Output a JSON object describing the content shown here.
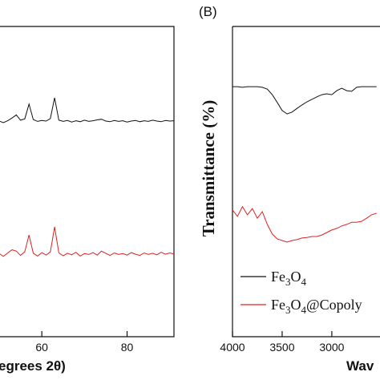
{
  "chart_data": [
    {
      "type": "line",
      "xlabel": "egrees 2θ)",
      "xlim": [
        50,
        91
      ],
      "ylim": [
        0,
        100
      ],
      "xticks": [
        60,
        80
      ],
      "x": [
        50,
        51,
        52,
        53,
        54,
        55,
        56,
        57,
        58,
        59,
        60,
        61,
        62,
        63,
        64,
        65,
        66,
        67,
        68,
        69,
        70,
        71,
        72,
        73,
        74,
        75,
        76,
        77,
        78,
        79,
        80,
        81,
        82,
        83,
        84,
        85,
        86,
        87,
        88,
        89,
        90,
        91
      ],
      "series": [
        {
          "color": "#111111",
          "values": [
            69.5,
            69.0,
            69.6,
            70.5,
            71.5,
            69.8,
            70.2,
            75.0,
            70.0,
            69.4,
            69.7,
            69.5,
            70.3,
            77.0,
            69.8,
            69.4,
            69.7,
            69.2,
            69.6,
            69.3,
            69.8,
            69.4,
            69.6,
            69.9,
            70.1,
            69.5,
            69.3,
            69.7,
            69.4,
            69.6,
            69.2,
            69.5,
            69.7,
            69.3,
            69.6,
            69.4,
            69.8,
            69.5,
            69.3,
            69.7,
            69.5,
            69.6
          ]
        },
        {
          "color": "#e02020",
          "values": [
            26.8,
            25.9,
            27.0,
            28.0,
            27.6,
            26.2,
            27.4,
            32.8,
            26.9,
            26.0,
            27.1,
            26.3,
            27.3,
            35.4,
            27.0,
            26.1,
            26.9,
            26.4,
            27.2,
            26.0,
            26.8,
            26.5,
            27.1,
            26.3,
            27.6,
            26.9,
            26.2,
            27.0,
            26.5,
            26.8,
            26.3,
            27.1,
            26.6,
            26.2,
            27.0,
            26.5,
            26.9,
            26.4,
            27.2,
            26.6,
            27.0,
            26.7
          ]
        }
      ]
    },
    {
      "type": "line",
      "title": "(B)",
      "ylabel": "Transmittance (%)",
      "xlabel": "Wav",
      "xlim": [
        4000,
        2515
      ],
      "ylim": [
        0,
        100
      ],
      "xticks": [
        4000,
        3500,
        3000
      ],
      "x": [
        4000,
        3950,
        3900,
        3850,
        3800,
        3750,
        3700,
        3650,
        3600,
        3550,
        3500,
        3450,
        3400,
        3350,
        3300,
        3250,
        3200,
        3150,
        3100,
        3050,
        3000,
        2950,
        2900,
        2850,
        2800,
        2750,
        2700,
        2650,
        2600,
        2550
      ],
      "series": [
        {
          "name": "Fe3O4",
          "color": "#111111",
          "values": [
            80.6,
            80.6,
            80.4,
            80.6,
            80.6,
            80.6,
            80.4,
            79.8,
            78.0,
            75.5,
            72.9,
            71.8,
            72.4,
            73.6,
            74.7,
            75.7,
            76.5,
            77.3,
            78.0,
            78.3,
            78.0,
            79.3,
            80.1,
            79.3,
            79.1,
            80.4,
            80.6,
            80.6,
            80.6,
            80.6
          ]
        },
        {
          "name": "Fe3O4@Copoly",
          "color": "#e02020",
          "values": [
            40.8,
            38.8,
            41.9,
            39.3,
            41.3,
            38.2,
            40.3,
            36.2,
            33.1,
            31.5,
            31.0,
            30.5,
            31.0,
            31.3,
            31.8,
            32.0,
            32.3,
            32.3,
            32.8,
            33.6,
            34.4,
            34.9,
            35.7,
            36.2,
            36.9,
            36.9,
            37.2,
            38.2,
            39.3,
            39.8
          ]
        }
      ]
    }
  ]
}
